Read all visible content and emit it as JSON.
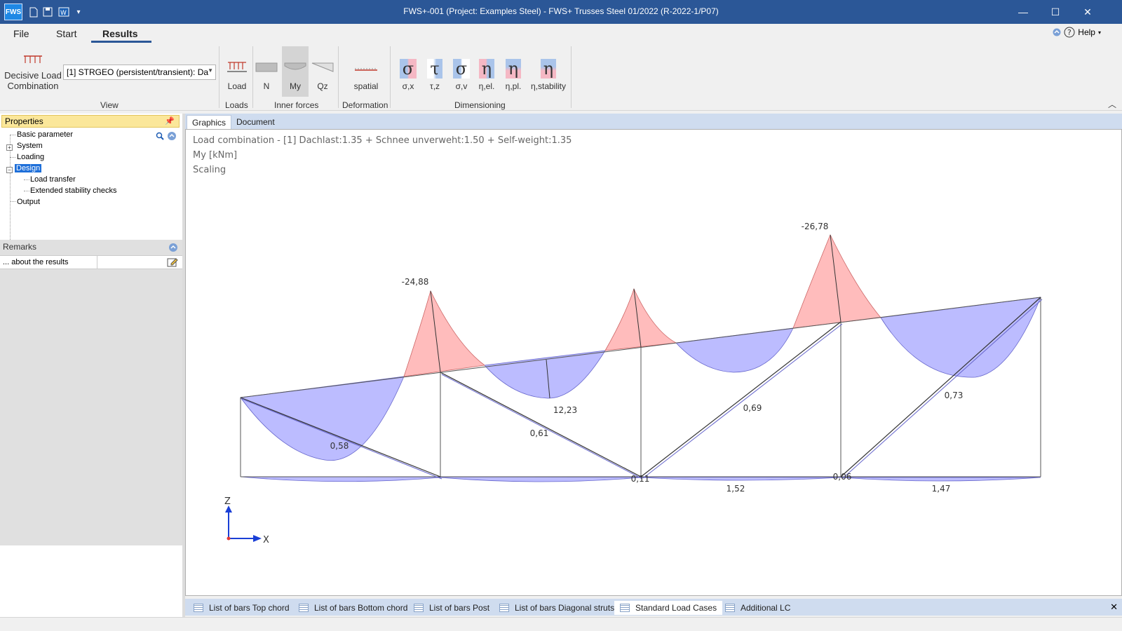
{
  "window": {
    "title": "FWS+-001 (Project: Examples Steel) - FWS+ Trusses Steel 01/2022 (R-2022-1/P07)",
    "app_logo": "FWS",
    "minimize_glyph": "—",
    "maximize_glyph": "☐",
    "close_glyph": "✕"
  },
  "menu": {
    "file": "File",
    "start": "Start",
    "results": "Results",
    "help": "Help"
  },
  "ribbon": {
    "decisive_load_line1": "Decisive Load",
    "decisive_load_line2": "Combination",
    "combo_value": "[1] STRGEO (persistent/transient): Da",
    "view_label": "View",
    "load_btn": "Load",
    "loads_label": "Loads",
    "n_btn": "N",
    "my_btn": "My",
    "qz_btn": "Qz",
    "inner_forces_label": "Inner forces",
    "spatial_btn": "spatial",
    "deformation_label": "Deformation",
    "sigma_x": "σ,x",
    "tau_z": "τ,z",
    "sigma_v": "σ,v",
    "eta_el": "η,el.",
    "eta_pl": "η,pl.",
    "eta_stability": "η,stability",
    "dimensioning_label": "Dimensioning",
    "sigma_glyph": "σ",
    "tau_glyph": "τ",
    "eta_glyph": "η"
  },
  "properties": {
    "header": "Properties",
    "items": [
      "Basic parameter",
      "System",
      "Loading",
      "Design",
      "Load transfer",
      "Extended stability checks",
      "Output"
    ]
  },
  "remarks": {
    "header": "Remarks",
    "row": "... about the results"
  },
  "tabs": {
    "graphics": "Graphics",
    "document": "Document"
  },
  "canvas": {
    "line1": "Load combination - [1] Dachlast:1.35 + Schnee unverweht:1.50 + Self-weight:1.35",
    "line2": "My [kNm]",
    "line3": "Scaling",
    "axis_z": "Z",
    "axis_x": "X"
  },
  "diagram_labels": {
    "peak1": "-24,88",
    "peak3": "-26,78",
    "span2": "12,23",
    "d1": "0,58",
    "d2": "0,61",
    "d3": "0,69",
    "d4": "0,73",
    "b1": "0,11",
    "b2": "1,52",
    "b3": "0,06",
    "b4": "1,47"
  },
  "bottom_tabs": [
    "List of bars Top chord",
    "List of bars Bottom chord",
    "List of bars Post",
    "List of bars Diagonal struts",
    "Standard Load Cases",
    "Additional LC"
  ],
  "colors": {
    "titlebar": "#2b5797",
    "negative_fill": "#ffbcbc",
    "positive_fill": "#bcbcff"
  }
}
